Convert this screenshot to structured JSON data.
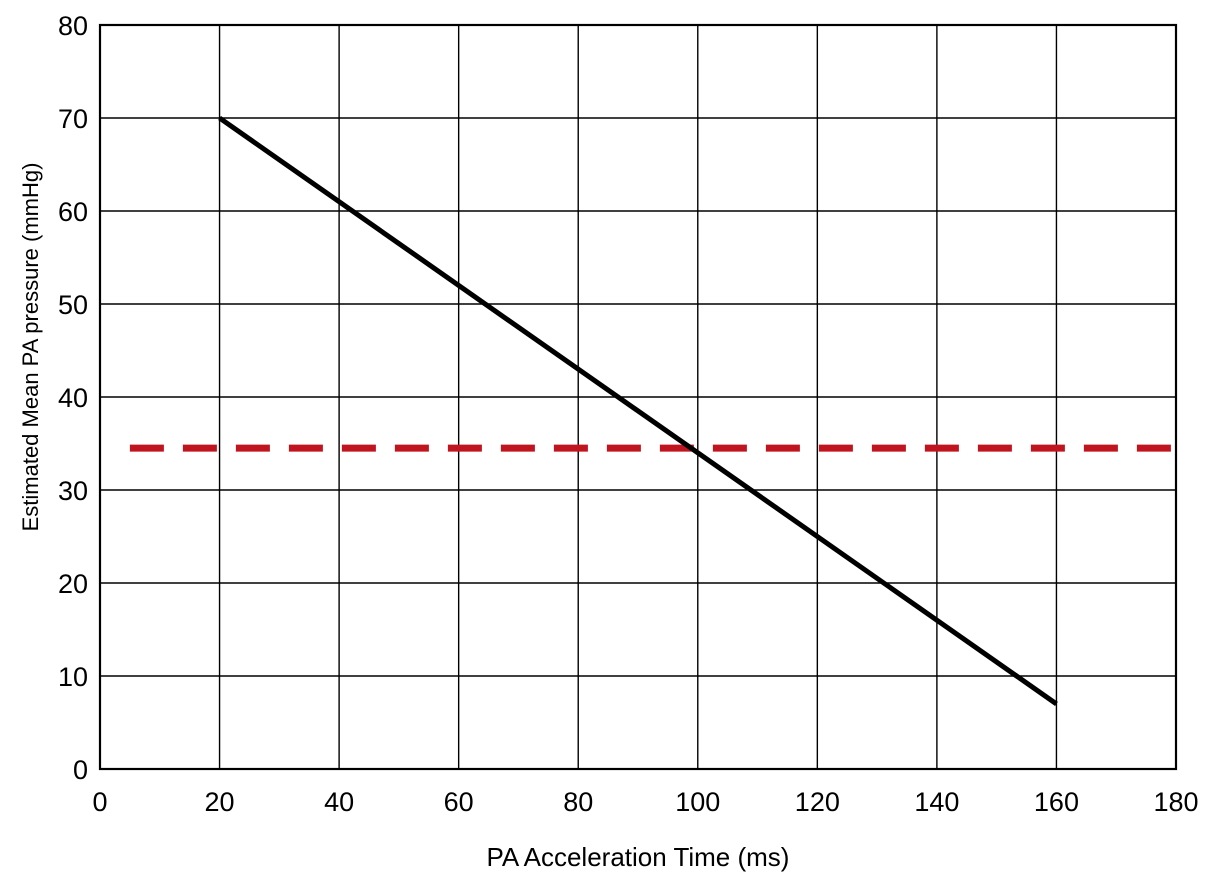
{
  "chart_data": {
    "type": "line",
    "xlabel": "PA Acceleration Time (ms)",
    "ylabel": "Estimated Mean PA pressure (mmHg)",
    "xlim": [
      0,
      180
    ],
    "ylim": [
      0,
      80
    ],
    "x_ticks": [
      0,
      20,
      40,
      60,
      80,
      100,
      120,
      140,
      160,
      180
    ],
    "y_ticks": [
      0,
      10,
      20,
      30,
      40,
      50,
      60,
      70,
      80
    ],
    "grid": true,
    "series": [
      {
        "values": [
          {
            "x": 20,
            "y": 70
          },
          {
            "x": 160,
            "y": 7
          }
        ],
        "color": "#000000",
        "style": "solid"
      }
    ],
    "reference_lines": [
      {
        "y": 34.5,
        "x_start": 5,
        "x_end": 180,
        "color": "#c0151f",
        "style": "dashed"
      }
    ]
  }
}
